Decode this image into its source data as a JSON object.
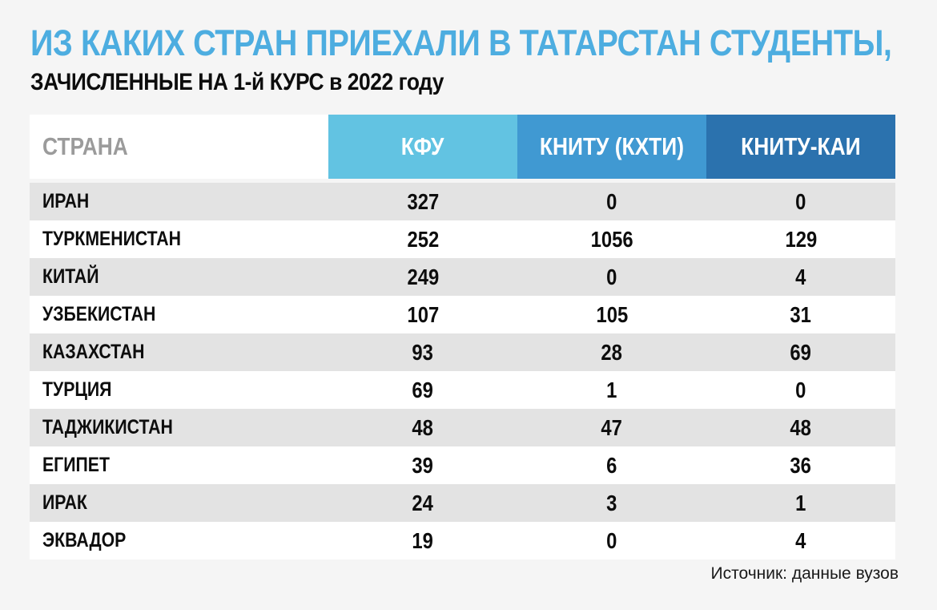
{
  "page": {
    "background": "#f5f5f5"
  },
  "title": {
    "line1": "ИЗ КАКИХ СТРАН ПРИЕХАЛИ В ТАТАРСТАН СТУДЕНТЫ,",
    "line2": "ЗАЧИСЛЕННЫЕ НА 1-й КУРС в 2022 году",
    "line1_color": "#4dade0",
    "line2_color": "#0d0d0d"
  },
  "table": {
    "stripe_color": "#e3e3e3",
    "columns": [
      {
        "label": "СТРАНА",
        "bg": "#ffffff",
        "text_color": "#9b9b9b"
      },
      {
        "label": "КФУ",
        "bg": "#62c3e2",
        "text_color": "#ffffff"
      },
      {
        "label": "КНИТУ (КХТИ)",
        "bg": "#4099d2",
        "text_color": "#ffffff"
      },
      {
        "label": "КНИТУ-КАИ",
        "bg": "#2b72ae",
        "text_color": "#ffffff"
      }
    ],
    "rows": [
      {
        "country": "ИРАН",
        "values": [
          "327",
          "0",
          "0"
        ]
      },
      {
        "country": "ТУРКМЕНИСТАН",
        "values": [
          "252",
          "1056",
          "129"
        ]
      },
      {
        "country": "КИТАЙ",
        "values": [
          "249",
          "0",
          "4"
        ]
      },
      {
        "country": "УЗБЕКИСТАН",
        "values": [
          "107",
          "105",
          "31"
        ]
      },
      {
        "country": "КАЗАХСТАН",
        "values": [
          "93",
          "28",
          "69"
        ]
      },
      {
        "country": "ТУРЦИЯ",
        "values": [
          "69",
          "1",
          "0"
        ]
      },
      {
        "country": "ТАДЖИКИСТАН",
        "values": [
          "48",
          "47",
          "48"
        ]
      },
      {
        "country": "ЕГИПЕТ",
        "values": [
          "39",
          "6",
          "36"
        ]
      },
      {
        "country": "ИРАК",
        "values": [
          "24",
          "3",
          "1"
        ]
      },
      {
        "country": "ЭКВАДОР",
        "values": [
          "19",
          "0",
          "4"
        ]
      }
    ]
  },
  "chart_data": {
    "type": "table",
    "title": "ИЗ КАКИХ СТРАН ПРИЕХАЛИ В ТАТАРСТАН СТУДЕНТЫ, ЗАЧИСЛЕННЫЕ НА 1-й КУРС в 2022 году",
    "columns": [
      "СТРАНА",
      "КФУ",
      "КНИТУ (КХТИ)",
      "КНИТУ-КАИ"
    ],
    "rows": [
      [
        "ИРАН",
        327,
        0,
        0
      ],
      [
        "ТУРКМЕНИСТАН",
        252,
        1056,
        129
      ],
      [
        "КИТАЙ",
        249,
        0,
        4
      ],
      [
        "УЗБЕКИСТАН",
        107,
        105,
        31
      ],
      [
        "КАЗАХСТАН",
        93,
        28,
        69
      ],
      [
        "ТУРЦИЯ",
        69,
        1,
        0
      ],
      [
        "ТАДЖИКИСТАН",
        48,
        47,
        48
      ],
      [
        "ЕГИПЕТ",
        39,
        6,
        36
      ],
      [
        "ИРАК",
        24,
        3,
        1
      ],
      [
        "ЭКВАДОР",
        19,
        0,
        4
      ]
    ],
    "source": "Источник: данные вузов"
  },
  "footer": {
    "source": "Источник: данные вузов"
  }
}
